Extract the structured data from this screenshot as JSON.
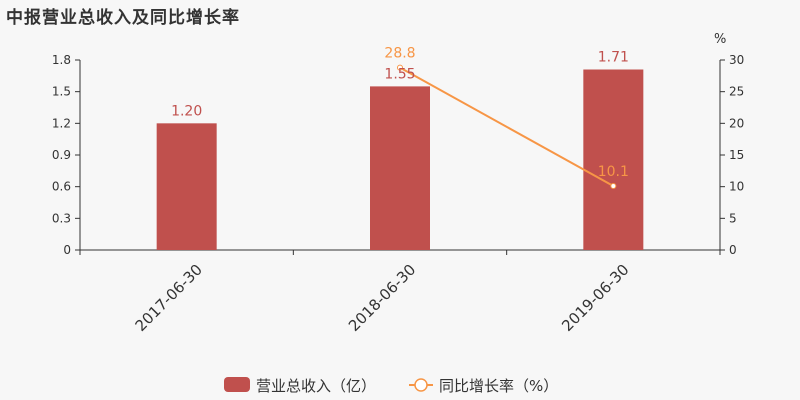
{
  "chart_data": {
    "type": "bar",
    "title": "中报营业总收入及同比增长率",
    "categories": [
      "2017-06-30",
      "2018-06-30",
      "2019-06-30"
    ],
    "series": [
      {
        "name": "营业总收入（亿）",
        "type": "bar",
        "axis": "left",
        "values": [
          1.2,
          1.55,
          1.71
        ],
        "labels": [
          "1.20",
          "1.55",
          "1.71"
        ],
        "color": "#c0504d"
      },
      {
        "name": "同比增长率（%）",
        "type": "line",
        "axis": "right",
        "values": [
          null,
          28.8,
          10.1
        ],
        "labels": [
          "",
          "28.8",
          "10.1"
        ],
        "color": "#f79646"
      }
    ],
    "y_left": {
      "min": 0,
      "max": 1.8,
      "ticks": [
        "0",
        "0.3",
        "0.6",
        "0.9",
        "1.2",
        "1.5",
        "1.8"
      ]
    },
    "y_right": {
      "min": 0,
      "max": 30,
      "ticks": [
        "0",
        "5",
        "10",
        "15",
        "20",
        "25",
        "30"
      ],
      "unit": "%"
    },
    "grid": false,
    "legend_position": "bottom"
  }
}
